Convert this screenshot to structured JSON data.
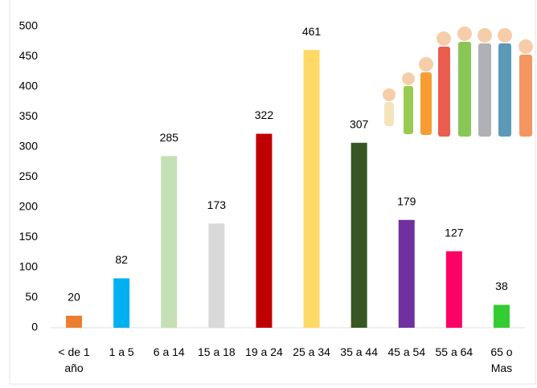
{
  "chart_data": {
    "type": "bar",
    "categories": [
      "< de 1 año",
      "1 a 5",
      "6 a 14",
      "15 a 18",
      "19 a 24",
      "25 a 34",
      "35 a 44",
      "45 a 54",
      "55 a 64",
      "65 o Mas"
    ],
    "values": [
      20,
      82,
      285,
      173,
      322,
      461,
      307,
      179,
      127,
      38
    ],
    "colors": [
      "#ed7d31",
      "#00b0f0",
      "#c5e0b4",
      "#d9d9d9",
      "#c00000",
      "#ffd966",
      "#375623",
      "#7030a0",
      "#ff0066",
      "#33cc33"
    ],
    "ylim": [
      0,
      500
    ],
    "yticks": [
      0,
      50,
      100,
      150,
      200,
      250,
      300,
      350,
      400,
      450,
      500
    ],
    "grid": false
  }
}
